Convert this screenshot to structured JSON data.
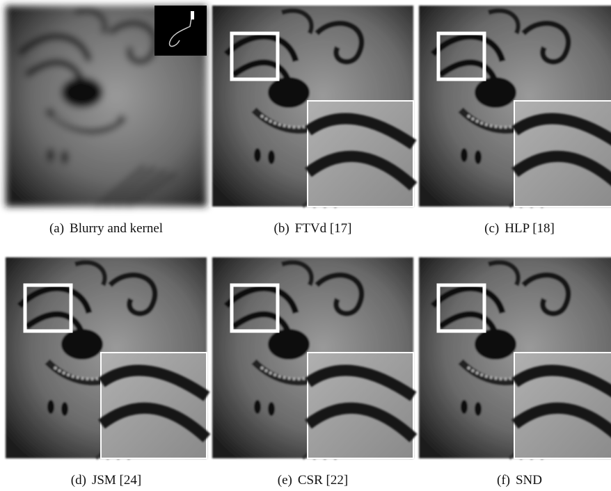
{
  "panels": [
    {
      "label": "(a)",
      "caption": "Blurry and kernel"
    },
    {
      "label": "(b)",
      "caption": "FTVd [17]"
    },
    {
      "label": "(c)",
      "caption": "HLP [18]"
    },
    {
      "label": "(d)",
      "caption": "JSM [24]"
    },
    {
      "label": "(e)",
      "caption": "CSR [22]"
    },
    {
      "label": "(f)",
      "caption": "SND"
    }
  ]
}
